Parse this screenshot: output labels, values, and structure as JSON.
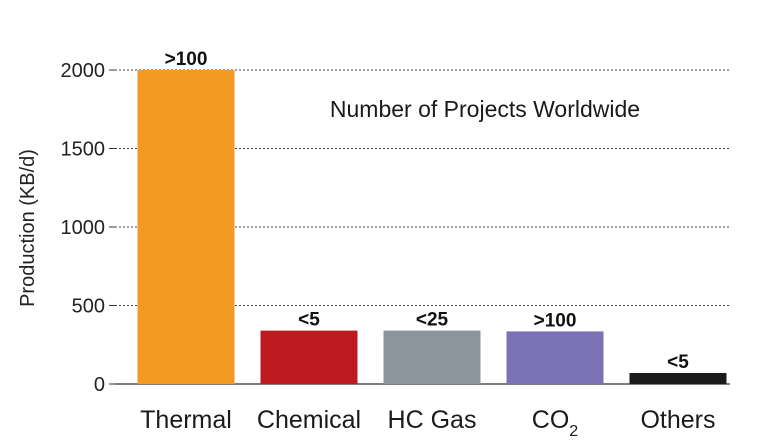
{
  "chart_data": {
    "type": "bar",
    "categories": [
      "Thermal",
      "Chemical",
      "HC Gas",
      "CO",
      "Others"
    ],
    "category_subscripts": [
      "",
      "",
      "",
      "2",
      ""
    ],
    "values": [
      2000,
      340,
      340,
      335,
      70
    ],
    "data_labels": [
      ">100",
      "<5",
      "<25",
      ">100",
      "<5"
    ],
    "colors": [
      "#F29A22",
      "#BC1C20",
      "#8A959C",
      "#7A72B4",
      "#1A1A1A"
    ],
    "annotation": "Number of Projects Worldwide",
    "ylabel": "Production (KB/d)",
    "xlabel": "",
    "yticks": [
      0,
      500,
      1000,
      1500,
      2000
    ],
    "ylim": [
      0,
      2000
    ],
    "grid": true
  }
}
